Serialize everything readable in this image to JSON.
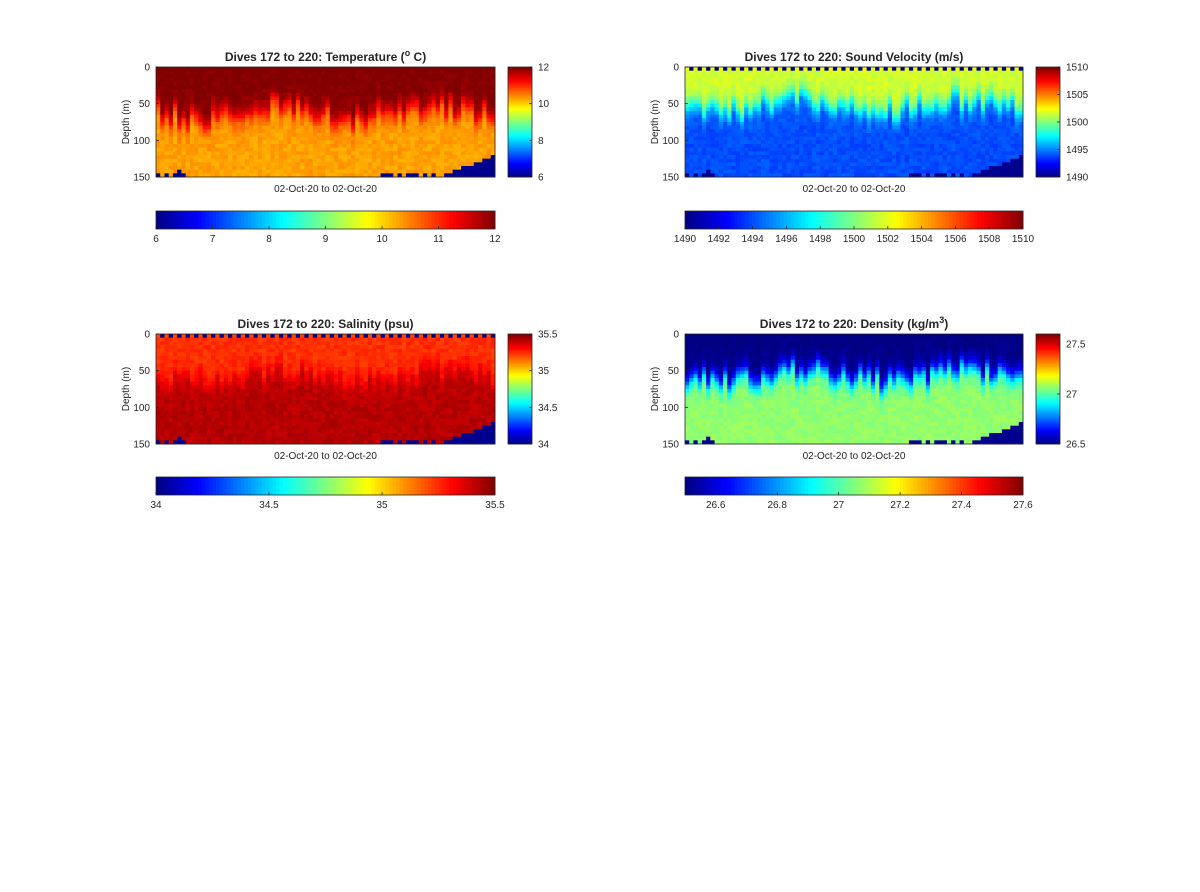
{
  "chart_data": [
    {
      "type": "heatmap",
      "title": "Dives 172 to 220: Temperature",
      "title_unit_pre": "(",
      "title_unit_sup": "o",
      "title_unit_post": " C)",
      "xlabel": "02-Oct-20 to 02-Oct-20",
      "ylabel": "Depth (m)",
      "ylim": [
        0,
        150
      ],
      "y_ticks": [
        "0",
        "50",
        "100",
        "150"
      ],
      "clim": [
        6,
        12
      ],
      "colorbar_ticks": [
        "12",
        "10",
        "8",
        "6"
      ],
      "colorbar_tick_values": [
        12,
        10,
        8,
        6
      ],
      "hbar_ticks": [
        "6",
        "7",
        "8",
        "9",
        "10",
        "11",
        "12"
      ],
      "hbar_tick_values": [
        6,
        7,
        8,
        9,
        10,
        11,
        12
      ],
      "colormap": "jet",
      "n_profiles": 80,
      "depth_bin_m": 5,
      "gap_color": "#00008f",
      "surface_value": 12.0,
      "mixed_layer_value": 12.0,
      "deep_value": 10.3,
      "mixed_layer_depth_m": 60,
      "surface_gap_pattern": "none"
    },
    {
      "type": "heatmap",
      "title": "Dives 172 to 220: Sound Velocity (m/s)",
      "xlabel": "02-Oct-20 to 02-Oct-20",
      "ylabel": "Depth (m)",
      "ylim": [
        0,
        150
      ],
      "y_ticks": [
        "0",
        "50",
        "100",
        "150"
      ],
      "clim": [
        1490,
        1510
      ],
      "colorbar_ticks": [
        "1510",
        "1505",
        "1500",
        "1495",
        "1490"
      ],
      "colorbar_tick_values": [
        1510,
        1505,
        1500,
        1495,
        1490
      ],
      "hbar_ticks": [
        "1490",
        "1492",
        "1494",
        "1496",
        "1498",
        "1500",
        "1502",
        "1504",
        "1506",
        "1508",
        "1510"
      ],
      "hbar_tick_values": [
        1490,
        1492,
        1494,
        1496,
        1498,
        1500,
        1502,
        1504,
        1506,
        1508,
        1510
      ],
      "colormap": "jet",
      "n_profiles": 80,
      "depth_bin_m": 5,
      "gap_color": "#00008f",
      "surface_value": 1502.3,
      "mixed_layer_value": 1501.6,
      "deep_value": 1494.0,
      "mixed_layer_depth_m": 50,
      "surface_gap_pattern": "alternate"
    },
    {
      "type": "heatmap",
      "title": "Dives 172 to 220: Salinity (psu)",
      "xlabel": "02-Oct-20 to 02-Oct-20",
      "ylabel": "Depth (m)",
      "ylim": [
        0,
        150
      ],
      "y_ticks": [
        "0",
        "50",
        "100",
        "150"
      ],
      "clim": [
        34,
        35.5
      ],
      "colorbar_ticks": [
        "35.5",
        "35",
        "34.5",
        "34"
      ],
      "colorbar_tick_values": [
        35.5,
        35,
        34.5,
        34
      ],
      "hbar_ticks": [
        "34",
        "34.5",
        "35",
        "35.5"
      ],
      "hbar_tick_values": [
        34,
        34.5,
        35,
        35.5
      ],
      "colormap": "jet",
      "n_profiles": 80,
      "depth_bin_m": 5,
      "gap_color": "#00008f",
      "surface_value": 35.21,
      "mixed_layer_value": 35.24,
      "deep_value": 35.42,
      "mixed_layer_depth_m": 55,
      "surface_gap_pattern": "alternate"
    },
    {
      "type": "heatmap",
      "title": "Dives 172 to 220: Density",
      "title_unit_pre": "(kg/m",
      "title_unit_sup": "3",
      "title_unit_post": ")",
      "xlabel": "02-Oct-20 to 02-Oct-20",
      "ylabel": "Depth (m)",
      "ylim": [
        0,
        150
      ],
      "y_ticks": [
        "0",
        "50",
        "100",
        "150"
      ],
      "clim": [
        26.5,
        27.6
      ],
      "colorbar_ticks": [
        "27.5",
        "27",
        "26.5"
      ],
      "colorbar_tick_values": [
        27.5,
        27,
        26.5
      ],
      "hbar_ticks": [
        "26.6",
        "26.8",
        "27",
        "27.2",
        "27.4",
        "27.6"
      ],
      "hbar_tick_values": [
        26.6,
        26.8,
        27,
        27.2,
        27.4,
        27.6
      ],
      "colormap": "jet",
      "n_profiles": 80,
      "depth_bin_m": 5,
      "gap_color": "#00008f",
      "surface_value": 26.5,
      "mixed_layer_value": 26.5,
      "deep_value": 27.07,
      "mixed_layer_depth_m": 55,
      "surface_gap_pattern": "none"
    }
  ]
}
